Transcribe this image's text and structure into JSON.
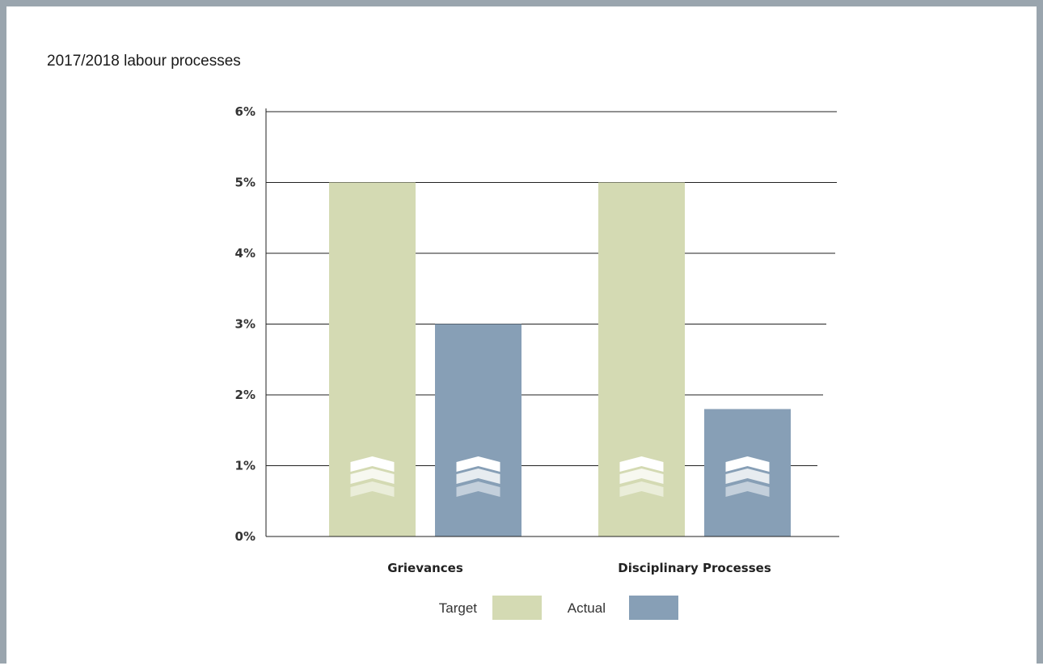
{
  "chart_data": {
    "type": "bar",
    "title": "2017/2018 labour processes",
    "categories": [
      "Grievances",
      "Disciplinary Processes"
    ],
    "series": [
      {
        "name": "Target",
        "values": [
          5,
          5
        ],
        "color": "#d4dab3"
      },
      {
        "name": "Actual",
        "values": [
          3,
          1.8
        ],
        "color": "#879fb6"
      }
    ],
    "yticks": [
      "0%",
      "1%",
      "2%",
      "3%",
      "4%",
      "5%",
      "6%"
    ],
    "ylim": [
      0,
      6
    ],
    "grid": true,
    "legend_position": "bottom",
    "bar_icon": "chevron-up-stack-icon"
  }
}
